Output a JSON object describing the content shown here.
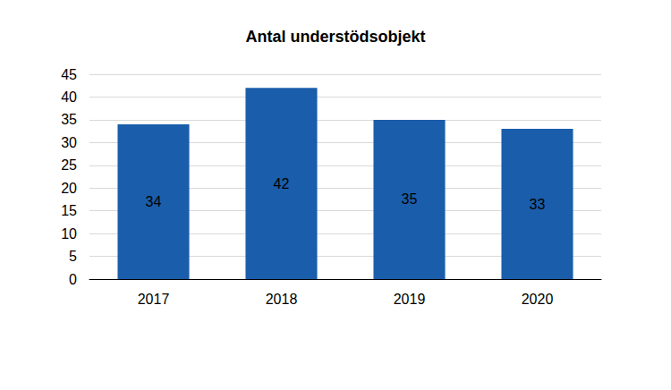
{
  "chart_data": {
    "type": "bar",
    "title": "Antal understödsobjekt",
    "categories": [
      "2017",
      "2018",
      "2019",
      "2020"
    ],
    "values": [
      34,
      42,
      35,
      33
    ],
    "color": "#1a5dab",
    "ylim": [
      0,
      45
    ],
    "yticks": [
      0,
      5,
      10,
      15,
      20,
      25,
      30,
      35,
      40,
      45
    ],
    "grid": true,
    "data_labels": true
  }
}
